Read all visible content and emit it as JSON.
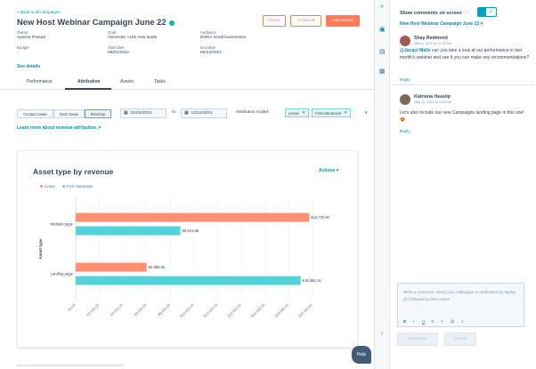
{
  "header": {
    "back_link": "< Back to all campaigns",
    "title": "New Host Webinar Campaign June 22",
    "buttons": {
      "clone": "Clone",
      "actions": "Actions ▾",
      "add_assets": "Add assets"
    }
  },
  "meta": {
    "owner_label": "Owner",
    "owner_value": "Aparna Prasad",
    "goal_label": "Goal",
    "goal_value": "Generate >100 new leads",
    "audience_label": "Audience",
    "audience_value": "EMEA small businesses",
    "budget_label": "Budget",
    "budget_value": "-",
    "start_label": "Start date",
    "start_value": "06/01/2022",
    "end_label": "End date",
    "end_value": "06/22/2022",
    "see_details": "See details"
  },
  "tabs": [
    "Performance",
    "Attribution",
    "Assets",
    "Tasks"
  ],
  "filters": {
    "segments": [
      "Contact create",
      "Deal create",
      "Revenue"
    ],
    "date_from": "01/01/2021",
    "to_label": "to",
    "date_to": "12/31/2021",
    "model_label": "Attribution model:",
    "chips": [
      "Linear",
      "First interaction"
    ],
    "learn_more": "Learn more about revenue attribution"
  },
  "card": {
    "title": "Asset type by revenue",
    "actions": "Actions ▾",
    "help": "Help"
  },
  "chart_data": {
    "type": "bar",
    "orientation": "horizontal",
    "title": "Asset type by revenue",
    "ylabel": "Asset type",
    "xlabel": "",
    "categories": [
      "Website page",
      "Landing page"
    ],
    "series": [
      {
        "name": "Linear",
        "color": "#ff8f73",
        "values": [
          19730.97,
          5989.55
        ],
        "labels": [
          "€19,730.97",
          "€5,989.55"
        ]
      },
      {
        "name": "First interaction",
        "color": "#51d3d9",
        "values": [
          8841.66,
          18994.16
        ],
        "labels": [
          "€8,841.66",
          "€18,994.16"
        ]
      }
    ],
    "xlim": [
      0,
      20000
    ],
    "xticks": [
      "€0.00",
      "€2,000.00",
      "€4,000.00",
      "€6,000.00",
      "€8,000.00",
      "€10,000.00",
      "€12,000.00",
      "€14,000.00",
      "€16,000.00",
      "€18,000.00",
      "€20,000.00"
    ],
    "legend_position": "top-left"
  },
  "comments_panel": {
    "show_label": "Show comments on screen",
    "campaign_link": "New Host Webinar Campaign June 22 ▾",
    "comments": [
      {
        "name": "Shay Redmond",
        "date": "May 6, 2021 at 11:15 AM",
        "mention": "@Jacqui Malls",
        "text": " can you take a look at our performance in last month's webinar and see if you can make any recommendations?",
        "reply": "Reply"
      },
      {
        "name": "Katriona Heaslip",
        "date": "May 12, 2021 at 9:00 AM",
        "mention": "",
        "text": "Let's also include our new Campaigns landing page in this one! 😍",
        "reply": "Reply"
      }
    ],
    "compose_placeholder": "Write a comment. Send your colleague a notification by typing @ followed by their name.",
    "format_tools": [
      "B",
      "I",
      "U",
      "T̶",
      "≡",
      "@",
      "☺"
    ],
    "comment_button": "Comment",
    "cancel_button": "Cancel"
  },
  "colors": {
    "accent": "#ff7a59",
    "link": "#0091ae",
    "teal": "#00a4bd"
  }
}
